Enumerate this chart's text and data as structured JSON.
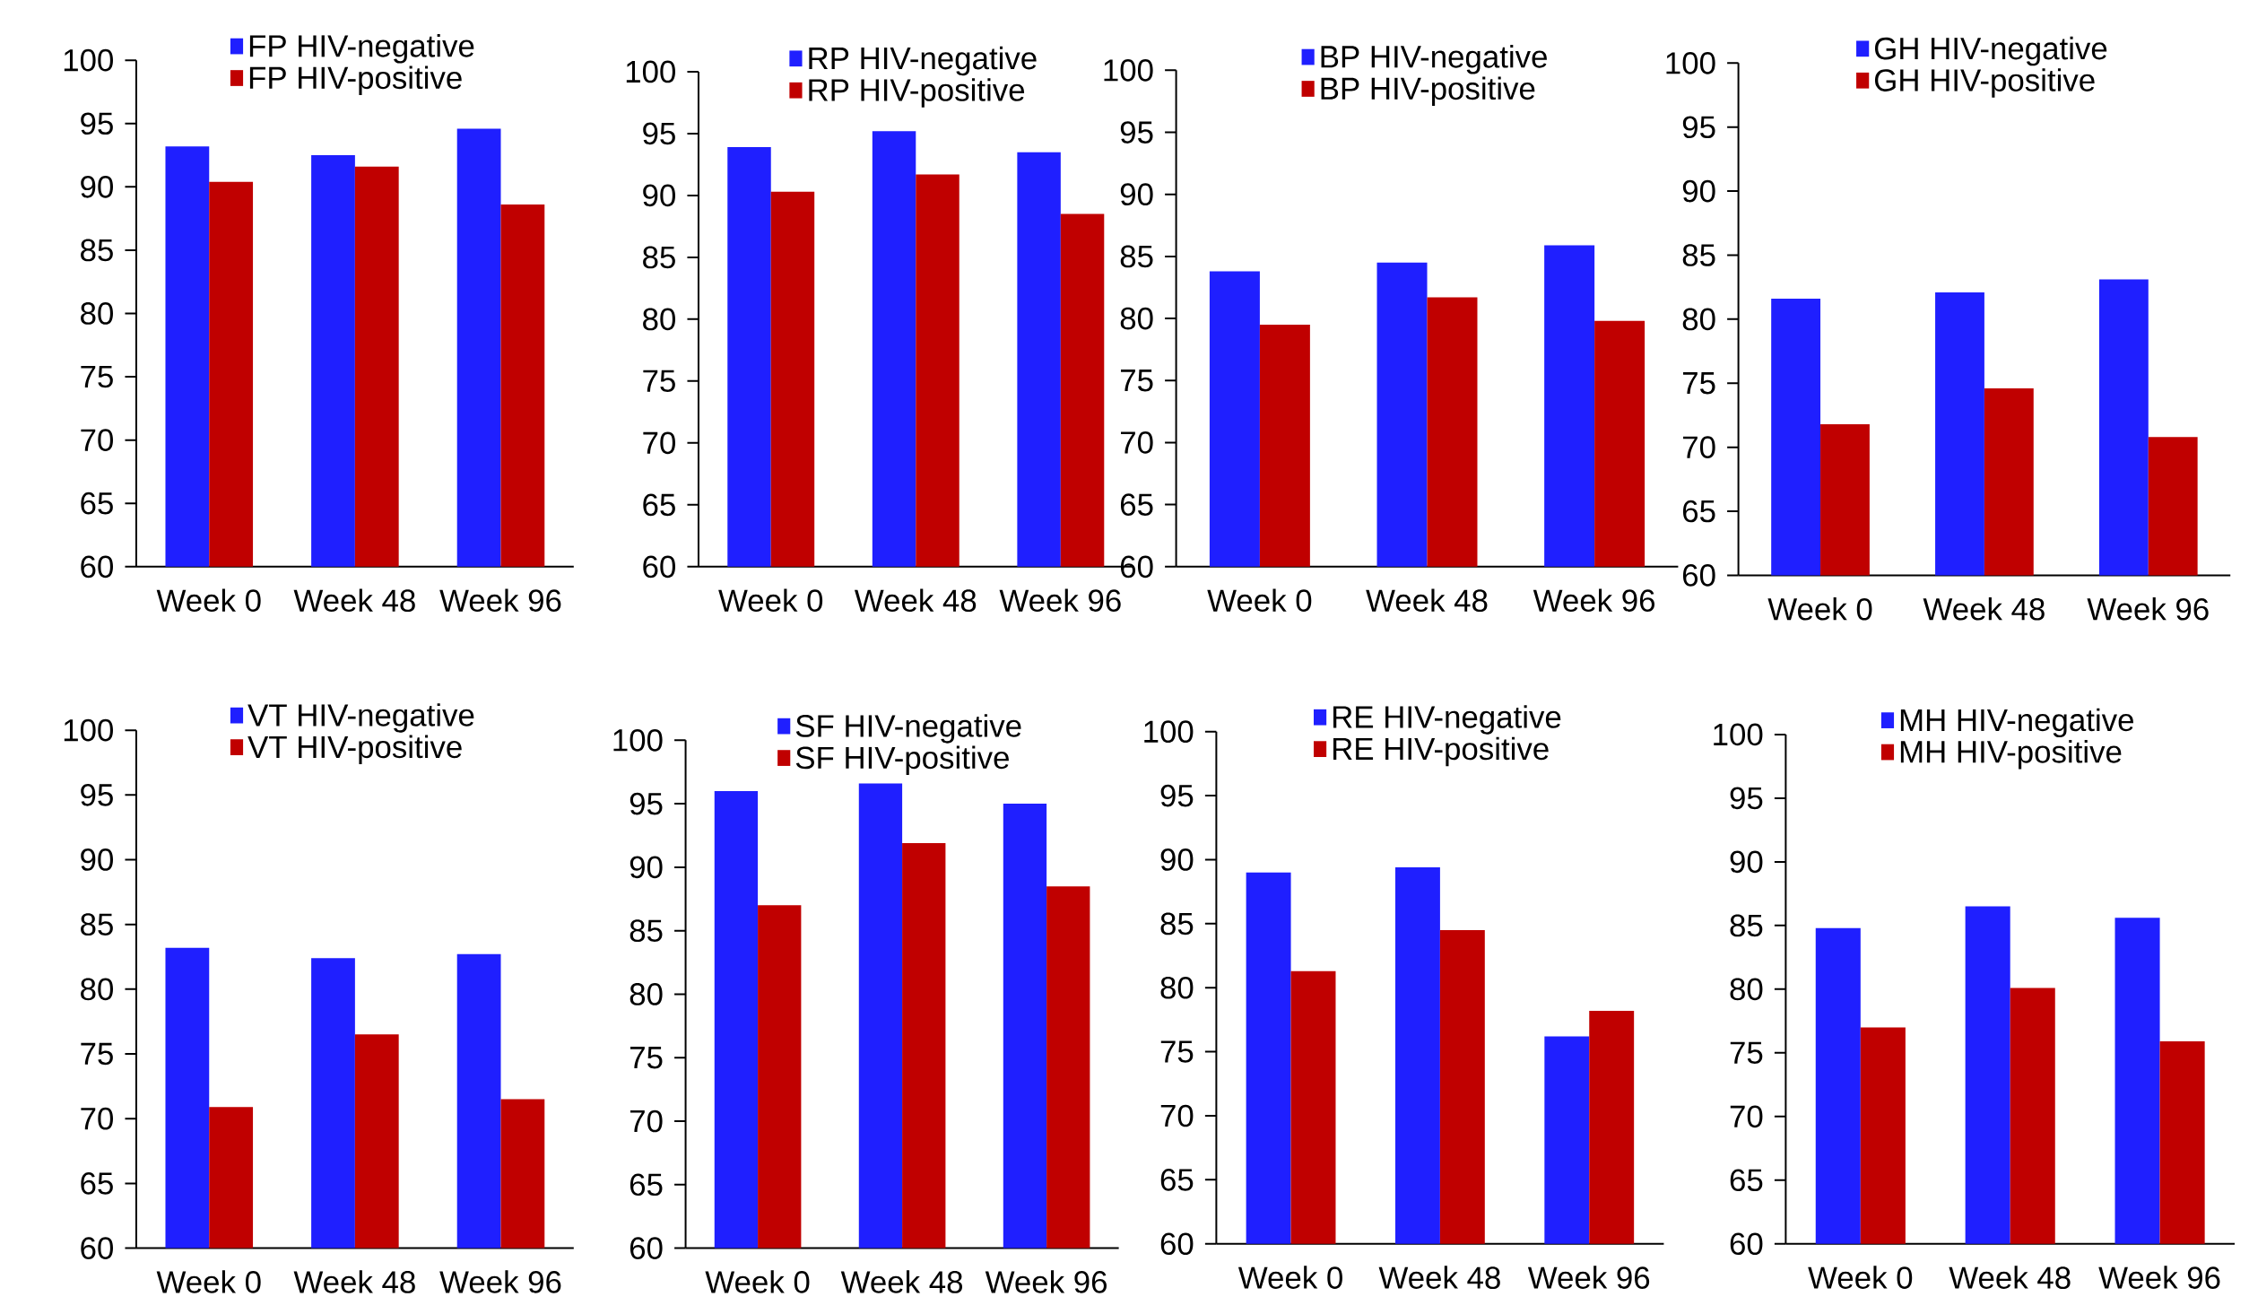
{
  "chart_data": [
    {
      "type": "bar",
      "categories": [
        "Week 0",
        "Week 48",
        "Week 96"
      ],
      "ylim": [
        60,
        100
      ],
      "yticks": [
        60,
        65,
        70,
        75,
        80,
        85,
        90,
        95,
        100
      ],
      "legend": "top",
      "series": [
        {
          "name": "FP HIV-negative",
          "color": "#1f1fff",
          "values": [
            93.2,
            92.5,
            94.6
          ]
        },
        {
          "name": "FP HIV-positive",
          "color": "#c00000",
          "values": [
            90.4,
            91.6,
            88.6
          ]
        }
      ]
    },
    {
      "type": "bar",
      "categories": [
        "Week 0",
        "Week 48",
        "Week 96"
      ],
      "ylim": [
        60,
        100
      ],
      "yticks": [
        60,
        65,
        70,
        75,
        80,
        85,
        90,
        95,
        100
      ],
      "legend": "top",
      "series": [
        {
          "name": "RP HIV-negative",
          "color": "#1f1fff",
          "values": [
            93.9,
            95.2,
            93.5
          ]
        },
        {
          "name": "RP HIV-positive",
          "color": "#c00000",
          "values": [
            90.3,
            91.7,
            88.5
          ]
        }
      ]
    },
    {
      "type": "bar",
      "categories": [
        "Week 0",
        "Week 48",
        "Week 96"
      ],
      "ylim": [
        60,
        100
      ],
      "yticks": [
        60,
        65,
        70,
        75,
        80,
        85,
        90,
        95,
        100
      ],
      "legend": "top",
      "series": [
        {
          "name": "BP HIV-negative",
          "color": "#1f1fff",
          "values": [
            83.8,
            84.5,
            85.9
          ]
        },
        {
          "name": "BP HIV-positive",
          "color": "#c00000",
          "values": [
            79.5,
            81.7,
            79.8
          ]
        }
      ]
    },
    {
      "type": "bar",
      "categories": [
        "Week 0",
        "Week 48",
        "Week 96"
      ],
      "ylim": [
        60,
        100
      ],
      "yticks": [
        60,
        65,
        70,
        75,
        80,
        85,
        90,
        95,
        100
      ],
      "legend": "top",
      "series": [
        {
          "name": "GH HIV-negative",
          "color": "#1f1fff",
          "values": [
            81.6,
            82.1,
            83.1
          ]
        },
        {
          "name": "GH HIV-positive",
          "color": "#c00000",
          "values": [
            71.8,
            74.6,
            70.8
          ]
        }
      ]
    },
    {
      "type": "bar",
      "categories": [
        "Week 0",
        "Week 48",
        "Week 96"
      ],
      "ylim": [
        60,
        100
      ],
      "yticks": [
        60,
        65,
        70,
        75,
        80,
        85,
        90,
        95,
        100
      ],
      "legend": "top",
      "series": [
        {
          "name": "VT HIV-negative",
          "color": "#1f1fff",
          "values": [
            83.2,
            82.4,
            82.7
          ]
        },
        {
          "name": "VT HIV-positive",
          "color": "#c00000",
          "values": [
            70.9,
            76.5,
            71.5
          ]
        }
      ]
    },
    {
      "type": "bar",
      "categories": [
        "Week 0",
        "Week 48",
        "Week 96"
      ],
      "ylim": [
        60,
        100
      ],
      "yticks": [
        60,
        65,
        70,
        75,
        80,
        85,
        90,
        95,
        100
      ],
      "legend": "top",
      "series": [
        {
          "name": "SF HIV-negative",
          "color": "#1f1fff",
          "values": [
            96.0,
            96.6,
            95.0
          ]
        },
        {
          "name": "SF HIV-positive",
          "color": "#c00000",
          "values": [
            87.0,
            91.9,
            88.5
          ]
        }
      ]
    },
    {
      "type": "bar",
      "categories": [
        "Week 0",
        "Week 48",
        "Week 96"
      ],
      "ylim": [
        60,
        100
      ],
      "yticks": [
        60,
        65,
        70,
        75,
        80,
        85,
        90,
        95,
        100
      ],
      "legend": "top",
      "series": [
        {
          "name": "RE HIV-negative",
          "color": "#1f1fff",
          "values": [
            89.0,
            89.4,
            76.2
          ]
        },
        {
          "name": "RE HIV-positive",
          "color": "#c00000",
          "values": [
            81.3,
            84.5,
            78.2
          ]
        }
      ]
    },
    {
      "type": "bar",
      "categories": [
        "Week 0",
        "Week 48",
        "Week 96"
      ],
      "ylim": [
        60,
        100
      ],
      "yticks": [
        60,
        65,
        70,
        75,
        80,
        85,
        90,
        95,
        100
      ],
      "legend": "top",
      "series": [
        {
          "name": "MH HIV-negative",
          "color": "#1f1fff",
          "values": [
            84.8,
            86.5,
            85.6
          ]
        },
        {
          "name": "MH HIV-positive",
          "color": "#c00000",
          "values": [
            77.0,
            80.1,
            75.9
          ]
        }
      ]
    }
  ]
}
